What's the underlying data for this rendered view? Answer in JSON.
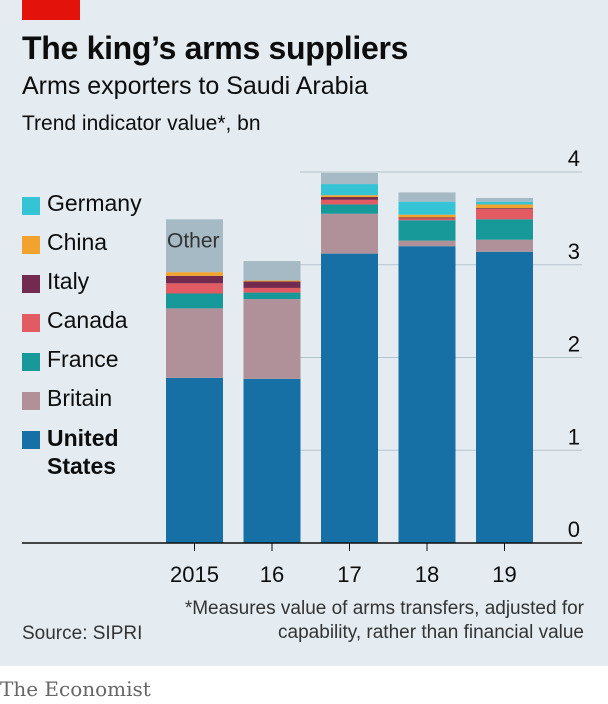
{
  "header": {
    "title": "The king’s arms suppliers",
    "subtitle": "Arms exporters to Saudi Arabia",
    "unit": "Trend indicator value*, bn"
  },
  "colors": {
    "united_states": "#1670a6",
    "britain": "#b09199",
    "france": "#17999a",
    "canada": "#e25a62",
    "italy": "#722b4e",
    "china": "#f2a32d",
    "germany": "#35c3d6",
    "other": "#a6bac5",
    "accent": "#e3120b"
  },
  "legend": [
    {
      "key": "germany",
      "label": "Germany",
      "bold": false
    },
    {
      "key": "china",
      "label": "China",
      "bold": false
    },
    {
      "key": "italy",
      "label": "Italy",
      "bold": false
    },
    {
      "key": "canada",
      "label": "Canada",
      "bold": false
    },
    {
      "key": "france",
      "label": "France",
      "bold": false
    },
    {
      "key": "britain",
      "label": "Britain",
      "bold": false
    },
    {
      "key": "united_states",
      "label": "United States",
      "bold": true
    }
  ],
  "chart_data": {
    "type": "bar",
    "stacked": true,
    "categories": [
      "2015",
      "16",
      "17",
      "18",
      "19"
    ],
    "series": [
      {
        "key": "united_states",
        "name": "United States",
        "values": [
          1.78,
          1.77,
          3.12,
          3.2,
          3.14
        ]
      },
      {
        "key": "britain",
        "name": "Britain",
        "values": [
          0.75,
          0.86,
          0.43,
          0.06,
          0.13
        ]
      },
      {
        "key": "france",
        "name": "France",
        "values": [
          0.16,
          0.07,
          0.1,
          0.22,
          0.22
        ]
      },
      {
        "key": "canada",
        "name": "Canada",
        "values": [
          0.11,
          0.05,
          0.05,
          0.02,
          0.11
        ]
      },
      {
        "key": "italy",
        "name": "Italy",
        "values": [
          0.08,
          0.07,
          0.03,
          0.01,
          0.01
        ]
      },
      {
        "key": "china",
        "name": "China",
        "values": [
          0.04,
          0.01,
          0.02,
          0.03,
          0.04
        ]
      },
      {
        "key": "germany",
        "name": "Germany",
        "values": [
          0.0,
          0.0,
          0.12,
          0.14,
          0.03
        ]
      },
      {
        "key": "other",
        "name": "Other",
        "values": [
          0.57,
          0.21,
          0.12,
          0.1,
          0.04
        ]
      }
    ],
    "annotations": [
      {
        "text": "Other",
        "category": "2015",
        "series": "other"
      }
    ],
    "ylim": [
      0,
      4
    ],
    "yticks": [
      0,
      1,
      2,
      3,
      4
    ],
    "ytick_labels": [
      "0",
      "1",
      "2",
      "3",
      "4"
    ],
    "grid": true,
    "y_axis_side": "right",
    "legend_position": "left"
  },
  "footer": {
    "note": "*Measures value of arms transfers, adjusted for capability, rather than financial value",
    "source": "Source: SIPRI",
    "brand": "The Economist"
  }
}
